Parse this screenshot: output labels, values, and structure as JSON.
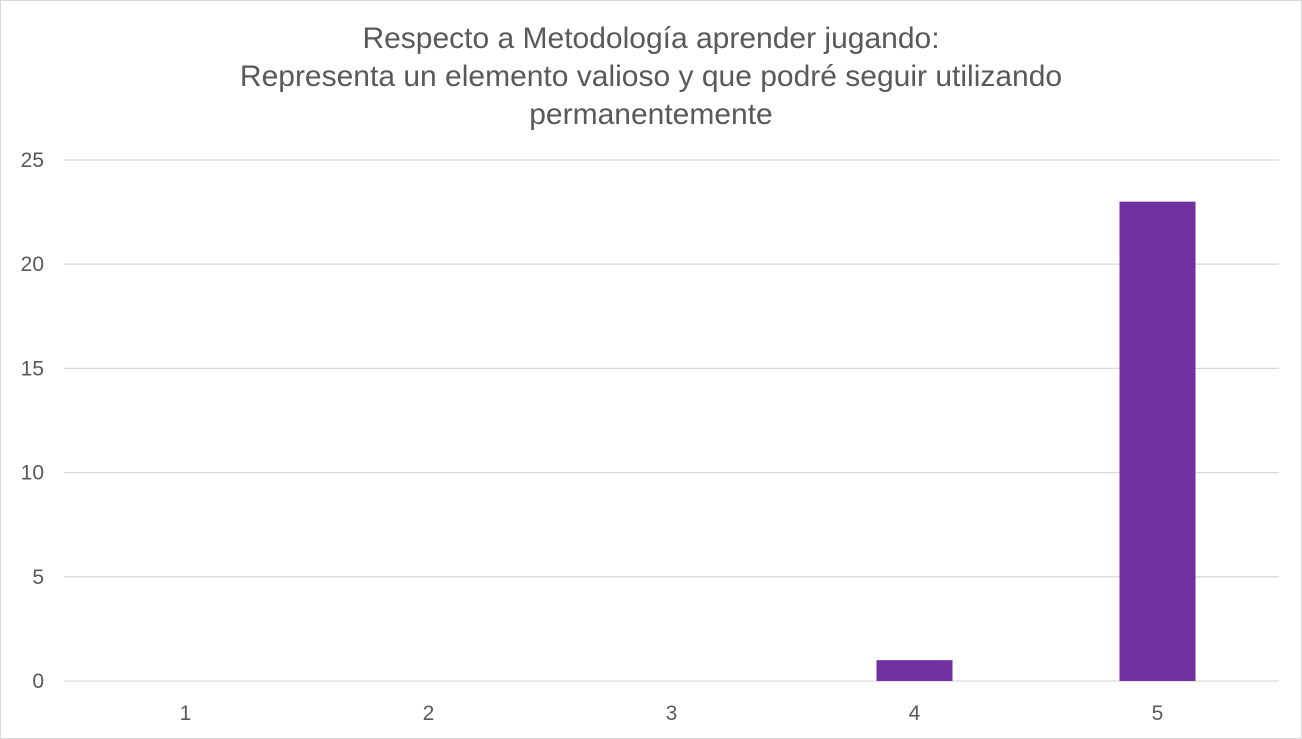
{
  "chart_data": {
    "type": "bar",
    "title_lines": [
      "Respecto a Metodología  aprender jugando:",
      "Representa un elemento valioso y que podré seguir utilizando",
      "permanentemente"
    ],
    "categories": [
      "1",
      "2",
      "3",
      "4",
      "5"
    ],
    "values": [
      0,
      0,
      0,
      1,
      23
    ],
    "ylim": [
      0,
      25
    ],
    "yticks": [
      0,
      5,
      10,
      15,
      20,
      25
    ],
    "xlabel": "",
    "ylabel": "",
    "grid": true,
    "legend": "none",
    "bar_color": "#7030a0",
    "grid_color": "#d9d9d9",
    "text_color": "#595959"
  }
}
